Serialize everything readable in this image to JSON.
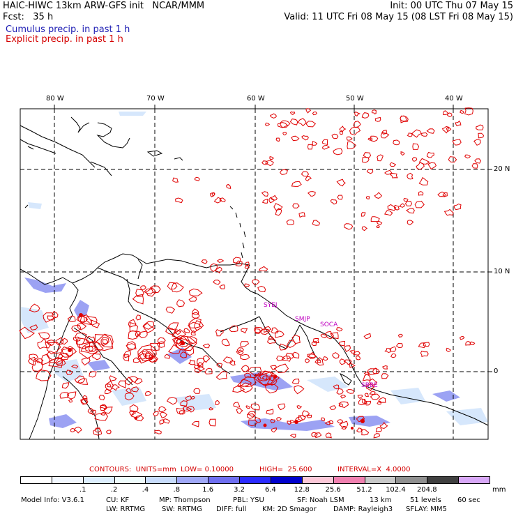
{
  "header": {
    "left_line1": "HAIC-HIWC 13km ARW-GFS init   NCAR/MMM",
    "left_line2": "Fcst:   35 h",
    "right_line1": "Init: 00 UTC Thu 07 May 15",
    "right_line2": "Valid: 11 UTC Fri 08 May 15 (08 LST Fri 08 May 15)",
    "legend_cumulus": "Cumulus precip. in past 1 h",
    "legend_explicit": "Explicit precip. in past 1 h"
  },
  "map": {
    "lon_labels": [
      "80 W",
      "70 W",
      "60 W",
      "50 W",
      "40 W"
    ],
    "lat_labels": [
      "20 N",
      "10 N",
      "0"
    ],
    "station_labels": [
      "SYEJ",
      "SMJP",
      "SOCA",
      "SBBE"
    ],
    "colors": {
      "coast": "#000000",
      "grid": "#000000",
      "explicit": "#e00000",
      "cumulus": "#6f78ee"
    }
  },
  "contours": {
    "units": "CONTOURS:  UNITS=mm  LOW= 0.10000",
    "high": "HIGH=  25.600",
    "interval": "INTERVAL=X  4.0000"
  },
  "colorbar": {
    "labels": [
      ".1",
      ".2",
      ".4",
      ".8",
      "1.6",
      "3.2",
      "6.4",
      "12.8",
      "25.6",
      "51.2",
      "102.4",
      "204.8"
    ],
    "unit": "mm",
    "colors": [
      "#ffffff",
      "#f2f8ff",
      "#ddeefe",
      "#eefcfc",
      "#c8dcfc",
      "#a0a8f8",
      "#6f6ff0",
      "#2a2aff",
      "#0000cc",
      "#fcc8d8",
      "#f080b0",
      "#c8c8c8",
      "#909090",
      "#404040",
      "#d8a8f8"
    ]
  },
  "footer": {
    "line1": [
      "Model Info: V3.6.1",
      "CU: KF",
      "MP: Thompson",
      "PBL: YSU",
      "SF: Noah LSM",
      "13 km",
      "51 levels",
      "60 sec"
    ],
    "line2": [
      "LW: RRTMG",
      "SW: RRTMG",
      "DIFF: full",
      "KM: 2D Smagor",
      "DAMP: Rayleigh3",
      "SFLAY: MM5"
    ]
  }
}
